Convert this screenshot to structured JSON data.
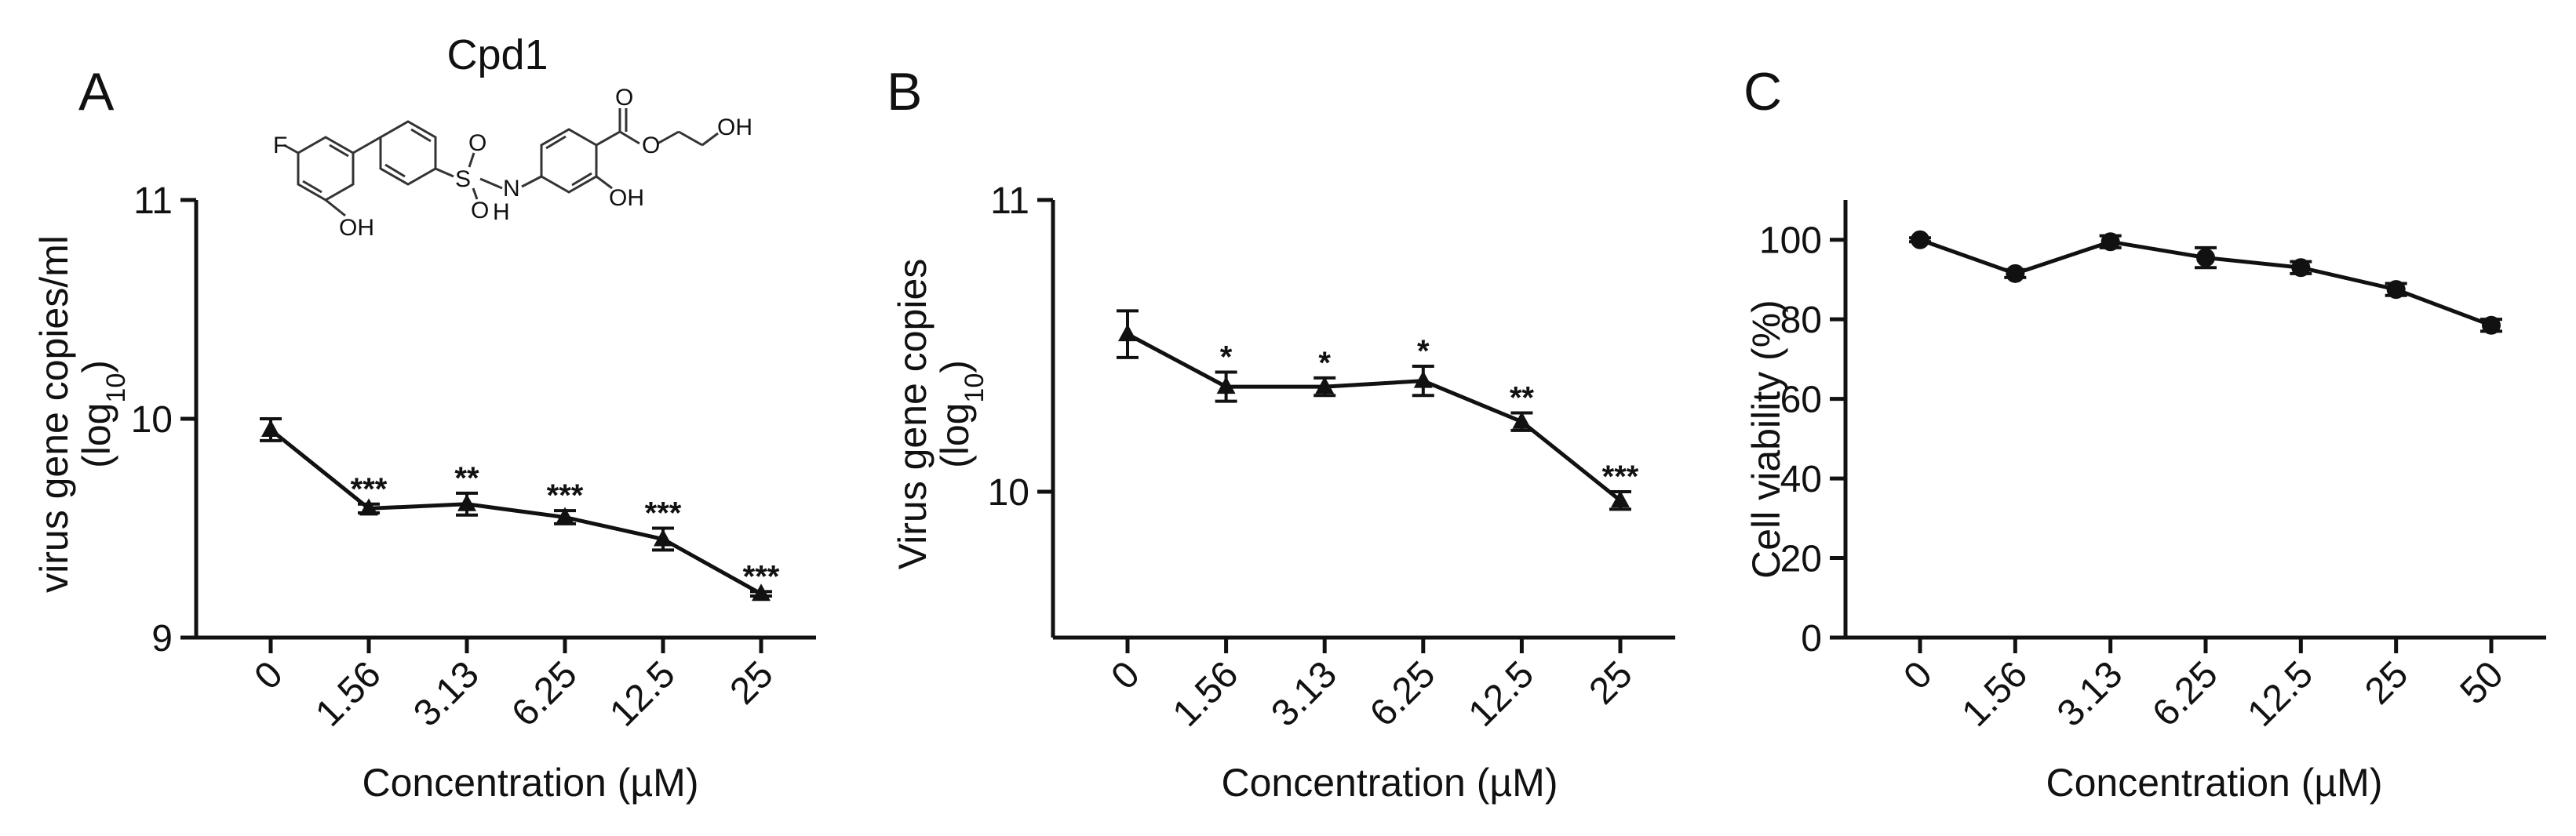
{
  "colors": {
    "ink": "#111111",
    "background": "#ffffff"
  },
  "compound": {
    "name": "Cpd1",
    "atoms": {
      "f": "F",
      "oh1": "OH",
      "s": "S",
      "o1": "O",
      "o2": "O",
      "n": "N",
      "h": "H",
      "oh2": "OH",
      "o3": "O",
      "o4": "O",
      "oh3": "OH"
    }
  },
  "chart_data": [
    {
      "panel": "A",
      "type": "line",
      "xlabel": "Concentration (µM)",
      "ylabel_main": "virus gene copies/ml",
      "ylabel_sub_pre": "(log",
      "ylabel_sub_script": "10",
      "ylabel_sub_post": ")",
      "ylim": [
        9,
        11
      ],
      "yticks": [
        9,
        10,
        11
      ],
      "categories": [
        "0",
        "1.56",
        "3.13",
        "6.25",
        "12.5",
        "25"
      ],
      "marker": "triangle",
      "series": [
        {
          "name": "Cpd1",
          "values": [
            9.95,
            9.59,
            9.61,
            9.55,
            9.45,
            9.2
          ],
          "errors": [
            0.05,
            0.02,
            0.05,
            0.03,
            0.05,
            0.01
          ]
        }
      ],
      "significance": [
        "",
        "***",
        "**",
        "***",
        "***",
        "***"
      ]
    },
    {
      "panel": "B",
      "type": "line",
      "xlabel": "Concentration (µM)",
      "ylabel_main": "Virus gene copies",
      "ylabel_sub_pre": "(log",
      "ylabel_sub_script": "10",
      "ylabel_sub_post": ")",
      "ylim": [
        9.5,
        11
      ],
      "yticks": [
        10,
        11
      ],
      "categories": [
        "0",
        "1.56",
        "3.13",
        "6.25",
        "12.5",
        "25"
      ],
      "marker": "triangle",
      "series": [
        {
          "name": "Cpd1",
          "values": [
            10.54,
            10.36,
            10.36,
            10.38,
            10.24,
            9.97
          ],
          "errors": [
            0.08,
            0.05,
            0.03,
            0.05,
            0.03,
            0.03
          ]
        }
      ],
      "significance": [
        "",
        "*",
        "*",
        "*",
        "**",
        "***"
      ]
    },
    {
      "panel": "C",
      "type": "line",
      "xlabel": "Concentration (µM)",
      "ylabel_main": "Cell viability (%)",
      "ylim": [
        0,
        110
      ],
      "yticks": [
        0,
        20,
        40,
        60,
        80,
        100
      ],
      "categories": [
        "0",
        "1.56",
        "3.13",
        "6.25",
        "12.5",
        "25",
        "50"
      ],
      "marker": "circle",
      "series": [
        {
          "name": "Cpd1",
          "values": [
            100,
            91.5,
            99.5,
            95.5,
            93,
            87.5,
            78.5
          ],
          "errors": [
            0.5,
            1,
            1.5,
            2.5,
            1.5,
            1.5,
            1.5
          ]
        }
      ],
      "significance": []
    }
  ]
}
